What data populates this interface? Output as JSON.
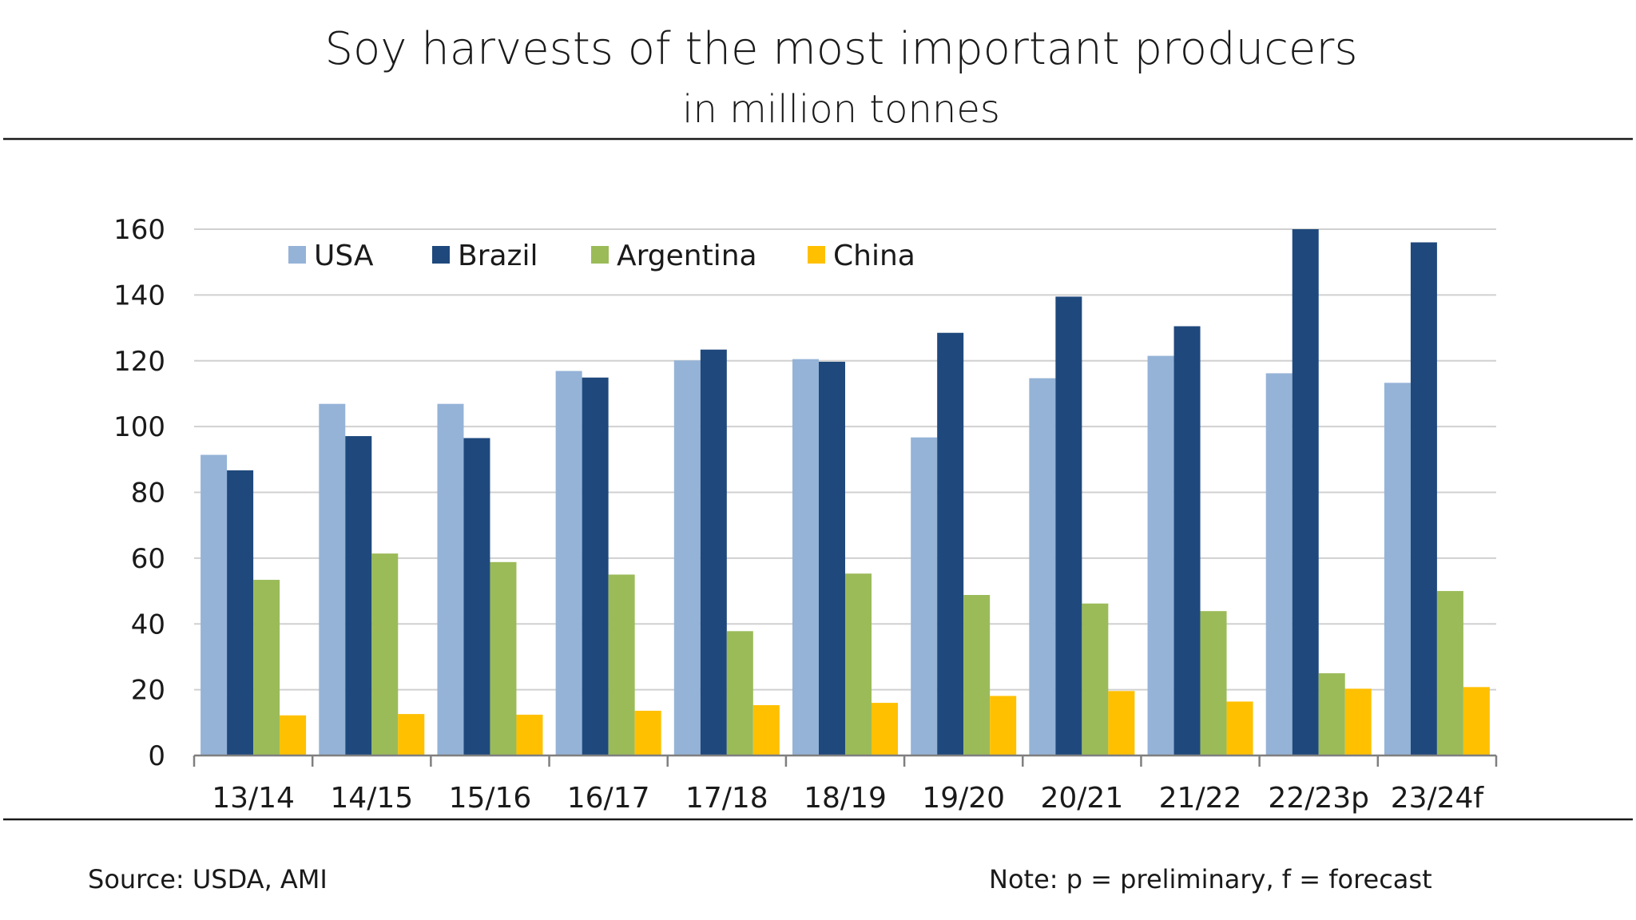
{
  "header": {
    "title": "Soy harvests of the most important producers",
    "subtitle": "in million tonnes"
  },
  "footer": {
    "source": "Source: USDA, AMI",
    "note": "Note: p = preliminary, f = forecast"
  },
  "chart_data": {
    "type": "bar",
    "title": "Soy harvests of the most important producers",
    "subtitle": "in million tonnes",
    "xlabel": "",
    "ylabel": "",
    "ylim": [
      0,
      160
    ],
    "yticks": [
      0,
      20,
      40,
      60,
      80,
      100,
      120,
      140,
      160
    ],
    "grid": true,
    "legend_position": "top-left",
    "categories": [
      "13/14",
      "14/15",
      "15/16",
      "16/17",
      "17/18",
      "18/19",
      "19/20",
      "20/21",
      "21/22",
      "22/23p",
      "23/24f"
    ],
    "series": [
      {
        "name": "USA",
        "color": "#95b3d7",
        "values": [
          91.4,
          106.9,
          106.9,
          116.9,
          120.1,
          120.5,
          96.7,
          114.7,
          121.5,
          116.2,
          113.3
        ]
      },
      {
        "name": "Brazil",
        "color": "#1f497d",
        "values": [
          86.7,
          97.1,
          96.5,
          114.9,
          123.4,
          119.7,
          128.5,
          139.5,
          130.5,
          160.0,
          156.0
        ]
      },
      {
        "name": "Argentina",
        "color": "#9bbb59",
        "values": [
          53.4,
          61.4,
          58.8,
          55.0,
          37.8,
          55.3,
          48.8,
          46.2,
          43.9,
          25.0,
          50.0
        ]
      },
      {
        "name": "China",
        "color": "#ffc000",
        "values": [
          12.2,
          12.6,
          12.4,
          13.6,
          15.3,
          16.0,
          18.1,
          19.6,
          16.4,
          20.3,
          20.8
        ]
      }
    ]
  }
}
